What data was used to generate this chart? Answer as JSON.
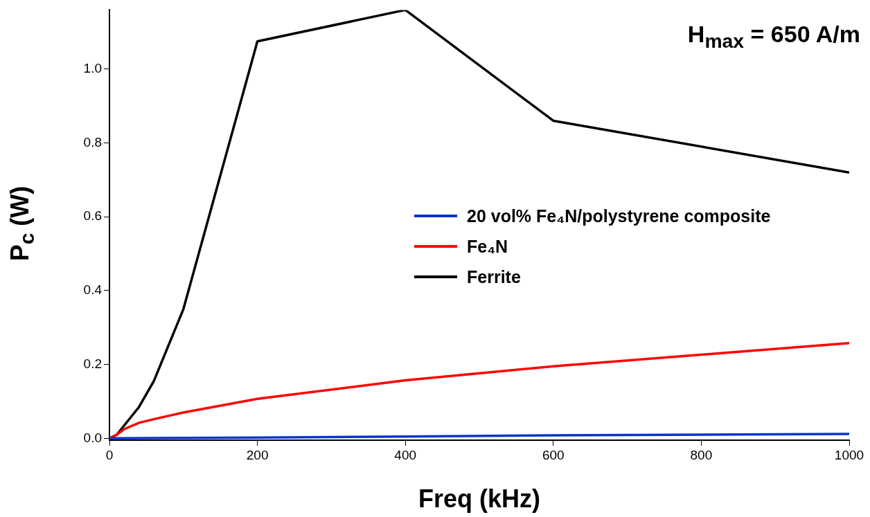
{
  "chart_data": {
    "type": "line",
    "xlabel": "Freq (kHz)",
    "ylabel": "P$_{c}$ (W)",
    "annotations": [
      "H$_{max}$ = 650 A/m"
    ],
    "xlim": [
      0,
      1000
    ],
    "xticks": [
      0,
      200,
      400,
      600,
      800,
      1000
    ],
    "ylim": [
      -0.005,
      1.16
    ],
    "yticks": [
      {
        "value": 0,
        "label": "0.0"
      },
      0.2,
      0.4,
      0.6,
      0.8,
      {
        "value": 1,
        "label": "1.0"
      }
    ],
    "grid": false,
    "legend": "right",
    "marker": "none",
    "line_style": "solid",
    "series": [
      {
        "name": "20 vol% Fe₄N/polystyrene composite",
        "color": "#0a36c8",
        "x": [
          0,
          100,
          200,
          400,
          600,
          1000
        ],
        "values": [
          0,
          0.001,
          0.002,
          0.005,
          0.008,
          0.012
        ]
      },
      {
        "name": "Fe₄N",
        "color": "#ff0000",
        "x": [
          0,
          10,
          20,
          40,
          60,
          100,
          200,
          400,
          600,
          1000
        ],
        "values": [
          0,
          0.01,
          0.025,
          0.042,
          0.052,
          0.07,
          0.107,
          0.157,
          0.195,
          0.258
        ]
      },
      {
        "name": "Ferrite",
        "color": "#000000",
        "x": [
          0,
          10,
          40,
          60,
          100,
          200,
          400,
          600,
          1000
        ],
        "values": [
          0,
          0.01,
          0.085,
          0.155,
          0.35,
          1.075,
          1.16,
          0.86,
          0.72
        ]
      }
    ]
  }
}
